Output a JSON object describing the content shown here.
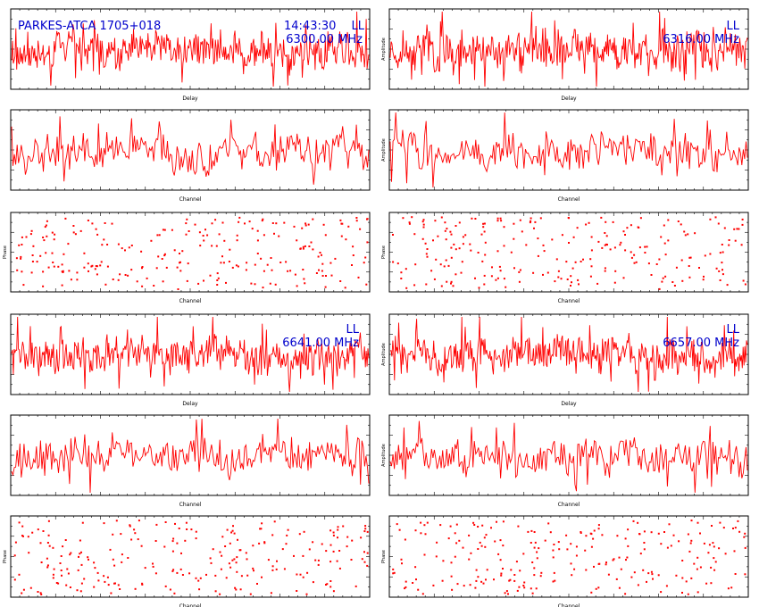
{
  "header": {
    "source": "PARKES-ATCA 1705+018",
    "time": "14:43:30",
    "pol_top_left": "LL",
    "freq_top_left": "6300.00 MHz",
    "pol_top_right": "LL",
    "freq_top_right": "6316.00 MHz",
    "pol_bottom_left": "LL",
    "freq_bottom_left": "6641.00 MHz",
    "pol_bottom_right": "LL",
    "freq_bottom_right": "6657.00 MHz"
  },
  "colors": {
    "trace": "#ff0000",
    "label": "#0000cc",
    "axis": "#000000"
  },
  "chart_data": [
    {
      "id": "delay-top-left",
      "type": "line",
      "xlabel": "Delay",
      "ylabel": "",
      "series_color": "#ff0000",
      "n_points": 420,
      "seed": 11,
      "ylim": [
        0,
        4
      ]
    },
    {
      "id": "delay-top-right",
      "type": "line",
      "xlabel": "Delay",
      "ylabel": "Amplitude",
      "series_color": "#ff0000",
      "n_points": 420,
      "seed": 23,
      "ylim": [
        0,
        4
      ]
    },
    {
      "id": "channel-top-left",
      "type": "line",
      "xlabel": "Channel",
      "ylabel": "",
      "series_color": "#ff0000",
      "n_points": 260,
      "seed": 37,
      "ylim": [
        0,
        4
      ]
    },
    {
      "id": "channel-top-right",
      "type": "line",
      "xlabel": "Channel",
      "ylabel": "Amplitude",
      "series_color": "#ff0000",
      "n_points": 260,
      "seed": 41,
      "ylim": [
        0,
        4
      ]
    },
    {
      "id": "phase-top-left",
      "type": "scatter",
      "xlabel": "Channel",
      "ylabel": "Phase",
      "series_color": "#ff0000",
      "n_points": 240,
      "seed": 53,
      "ylim": [
        -180,
        180
      ]
    },
    {
      "id": "phase-top-right",
      "type": "scatter",
      "xlabel": "Channel",
      "ylabel": "Phase",
      "series_color": "#ff0000",
      "n_points": 240,
      "seed": 67,
      "ylim": [
        -180,
        180
      ]
    },
    {
      "id": "delay-bottom-left",
      "type": "line",
      "xlabel": "Delay",
      "ylabel": "",
      "series_color": "#ff0000",
      "n_points": 420,
      "seed": 71,
      "ylim": [
        0,
        4
      ]
    },
    {
      "id": "delay-bottom-right",
      "type": "line",
      "xlabel": "Delay",
      "ylabel": "Amplitude",
      "series_color": "#ff0000",
      "n_points": 420,
      "seed": 83,
      "ylim": [
        0,
        4
      ]
    },
    {
      "id": "channel-bottom-left",
      "type": "line",
      "xlabel": "Channel",
      "ylabel": "",
      "series_color": "#ff0000",
      "n_points": 260,
      "seed": 97,
      "ylim": [
        0,
        4
      ]
    },
    {
      "id": "channel-bottom-right",
      "type": "line",
      "xlabel": "Channel",
      "ylabel": "Amplitude",
      "series_color": "#ff0000",
      "n_points": 260,
      "seed": 101,
      "ylim": [
        0,
        4
      ]
    },
    {
      "id": "phase-bottom-left",
      "type": "scatter",
      "xlabel": "Channel",
      "ylabel": "Phase",
      "series_color": "#ff0000",
      "n_points": 240,
      "seed": 113,
      "ylim": [
        -180,
        180
      ]
    },
    {
      "id": "phase-bottom-right",
      "type": "scatter",
      "xlabel": "Channel",
      "ylabel": "Phase",
      "series_color": "#ff0000",
      "n_points": 240,
      "seed": 127,
      "ylim": [
        -180,
        180
      ]
    }
  ]
}
